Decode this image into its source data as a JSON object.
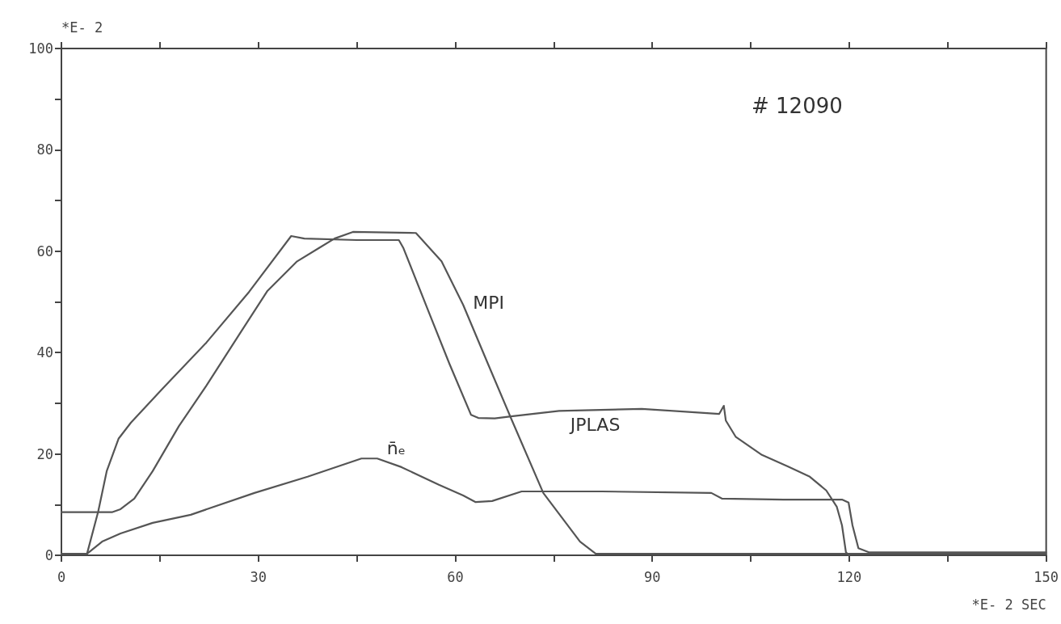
{
  "chart_data": {
    "type": "line",
    "xlabel": "*E- 2 SEC",
    "ylabel": "*E- 2",
    "annotations": [
      "# 12090"
    ],
    "xlim": [
      0,
      150
    ],
    "xticks": [
      0,
      {
        "value": 15,
        "label": null
      },
      30,
      {
        "value": 45,
        "label": null
      },
      60,
      {
        "value": 75,
        "label": null
      },
      90,
      {
        "value": 105,
        "label": null
      },
      120,
      {
        "value": 135,
        "label": null
      },
      150
    ],
    "ylim": [
      0,
      100
    ],
    "yticks": [
      0,
      {
        "value": 10,
        "label": null
      },
      20,
      {
        "value": 30,
        "label": null
      },
      40,
      {
        "value": 50,
        "label": null
      },
      60,
      {
        "value": 70,
        "label": null
      },
      80,
      {
        "value": 90,
        "label": null
      },
      100
    ],
    "marker": "none",
    "line_style": "solid",
    "series": [
      {
        "name": "MPI",
        "color": "#555555",
        "x": [
          0,
          7.7,
          9,
          11.1,
          13.9,
          17.9,
          22.1,
          27.4,
          31.4,
          35.9,
          39.2,
          41.6,
          44.4,
          54,
          57.9,
          61.2,
          64.9,
          68.5,
          73.4,
          79,
          81.4,
          90,
          120,
          150
        ],
        "values": [
          8.5,
          8.5,
          9.1,
          11.2,
          16.6,
          25.5,
          33.5,
          44.2,
          52.2,
          58,
          60.6,
          62.5,
          63.8,
          63.6,
          58,
          49.4,
          38,
          27,
          12.3,
          2.7,
          0.3,
          0.3,
          0.3,
          0.3
        ]
      },
      {
        "name": "JPLAS",
        "color": "#555555",
        "x": [
          0,
          3.9,
          5.6,
          6.9,
          8.7,
          10.6,
          15.5,
          22.1,
          28.6,
          35,
          37,
          45,
          51.4,
          52.1,
          55.8,
          59.1,
          62.4,
          63.5,
          66,
          68.5,
          75.8,
          88.4,
          100.2,
          100.9,
          101.2,
          102.7,
          106.7,
          110.7,
          114,
          116.5,
          118.1,
          118.9,
          119.5,
          120
        ],
        "values": [
          0.3,
          0.3,
          8.6,
          16.6,
          23,
          26.2,
          33,
          42,
          52,
          63,
          62.5,
          62.2,
          62.2,
          60.6,
          48.5,
          37.8,
          27.7,
          27.1,
          27,
          27.4,
          28.5,
          28.9,
          27.9,
          29.5,
          26.6,
          23.4,
          19.8,
          17.5,
          15.5,
          12.8,
          9.6,
          5.9,
          0.6,
          0
        ]
      },
      {
        "name": "n̄ₑ",
        "color": "#555555",
        "x": [
          0,
          3.9,
          6.2,
          9,
          13.9,
          19.7,
          29.4,
          37.5,
          45.7,
          48.1,
          51.8,
          57.5,
          61.2,
          63.1,
          65.6,
          70.1,
          82.3,
          99,
          100.6,
          110,
          118.9,
          119.9,
          120.5,
          121.4,
          123,
          150
        ],
        "values": [
          0.3,
          0.3,
          2.7,
          4.3,
          6.4,
          8,
          12.3,
          15.5,
          19.1,
          19.1,
          17.4,
          13.9,
          11.8,
          10.5,
          10.7,
          12.6,
          12.6,
          12.3,
          11.2,
          11,
          11,
          10.4,
          5.9,
          1.4,
          0.6,
          0.6
        ]
      }
    ]
  }
}
